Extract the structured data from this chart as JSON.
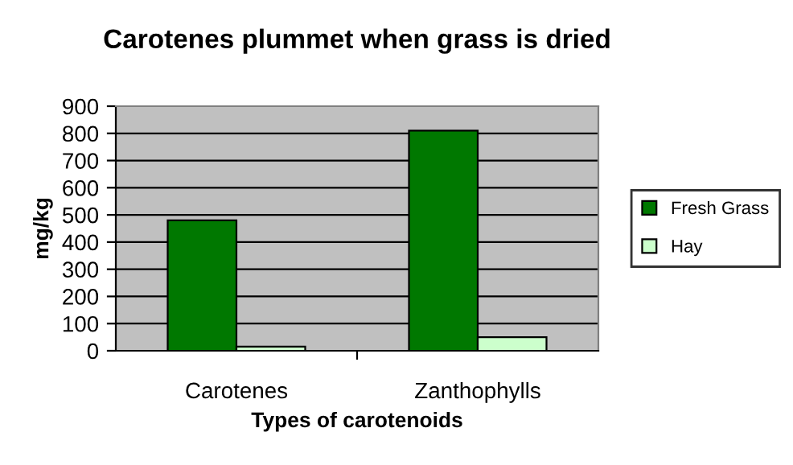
{
  "chart_data": {
    "type": "bar",
    "title": "Carotenes plummet when grass is dried",
    "xlabel": "Types of carotenoids",
    "ylabel": "mg/kg",
    "categories": [
      "Carotenes",
      "Zanthophylls"
    ],
    "series": [
      {
        "name": "Fresh Grass",
        "color": "#007800",
        "values": [
          480,
          810
        ]
      },
      {
        "name": "Hay",
        "color": "#ccffcc",
        "values": [
          15,
          50
        ]
      }
    ],
    "ylim": [
      0,
      900
    ],
    "yticks": [
      0,
      100,
      200,
      300,
      400,
      500,
      600,
      700,
      800,
      900
    ],
    "grid": "y",
    "legend": "right"
  }
}
